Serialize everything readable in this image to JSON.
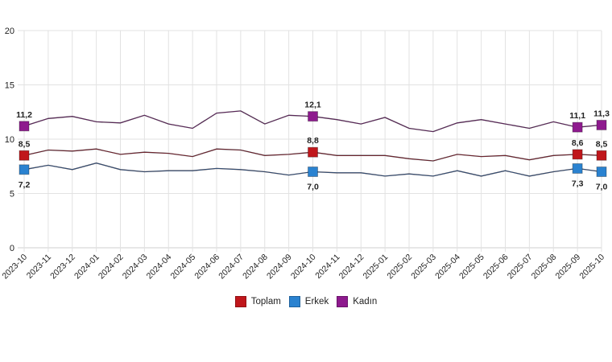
{
  "chart_data": {
    "type": "line",
    "title": "",
    "xlabel": "",
    "ylabel": "",
    "ylim": [
      0,
      20
    ],
    "yticks": [
      0,
      5,
      10,
      15,
      20
    ],
    "grid": true,
    "legend_position": "bottom",
    "x": [
      "2023-10",
      "2023-11",
      "2023-12",
      "2024-01",
      "2024-02",
      "2024-03",
      "2024-04",
      "2024-05",
      "2024-06",
      "2024-07",
      "2024-08",
      "2024-09",
      "2024-10",
      "2024-11",
      "2024-12",
      "2025-01",
      "2025-02",
      "2025-03",
      "2025-04",
      "2025-05",
      "2025-06",
      "2025-07",
      "2025-08",
      "2025-09",
      "2025-10"
    ],
    "series": [
      {
        "name": "Toplam",
        "color": "#c0161b",
        "values": [
          8.5,
          9.0,
          8.9,
          9.1,
          8.6,
          8.8,
          8.7,
          8.4,
          9.1,
          9.0,
          8.5,
          8.6,
          8.8,
          8.5,
          8.5,
          8.5,
          8.2,
          8.0,
          8.6,
          8.4,
          8.5,
          8.1,
          8.5,
          8.6,
          8.5
        ]
      },
      {
        "name": "Erkek",
        "color": "#2a82d0",
        "values": [
          7.2,
          7.6,
          7.2,
          7.8,
          7.2,
          7.0,
          7.1,
          7.1,
          7.3,
          7.2,
          7.0,
          6.7,
          7.0,
          6.9,
          6.9,
          6.6,
          6.8,
          6.6,
          7.1,
          6.6,
          7.1,
          6.6,
          7.0,
          7.3,
          7.0
        ]
      },
      {
        "name": "Kadın",
        "color": "#8e1a8e",
        "values": [
          11.2,
          11.9,
          12.1,
          11.6,
          11.5,
          12.2,
          11.4,
          11.0,
          12.4,
          12.6,
          11.4,
          12.2,
          12.1,
          11.8,
          11.4,
          12.0,
          11.0,
          10.7,
          11.5,
          11.8,
          11.4,
          11.0,
          11.6,
          11.1,
          11.3
        ]
      }
    ],
    "annotations": [
      {
        "series": "Kadın",
        "x": "2023-10",
        "label": "11,2",
        "position": "above"
      },
      {
        "series": "Toplam",
        "x": "2023-10",
        "label": "8,5",
        "position": "above"
      },
      {
        "series": "Erkek",
        "x": "2023-10",
        "label": "7,2",
        "position": "below"
      },
      {
        "series": "Kadın",
        "x": "2024-10",
        "label": "12,1",
        "position": "above"
      },
      {
        "series": "Toplam",
        "x": "2024-10",
        "label": "8,8",
        "position": "above"
      },
      {
        "series": "Erkek",
        "x": "2024-10",
        "label": "7,0",
        "position": "below"
      },
      {
        "series": "Kadın",
        "x": "2025-09",
        "label": "11,1",
        "position": "above"
      },
      {
        "series": "Toplam",
        "x": "2025-09",
        "label": "8,6",
        "position": "above"
      },
      {
        "series": "Erkek",
        "x": "2025-09",
        "label": "7,3",
        "position": "below"
      },
      {
        "series": "Kadın",
        "x": "2025-10",
        "label": "11,3",
        "position": "above"
      },
      {
        "series": "Toplam",
        "x": "2025-10",
        "label": "8,5",
        "position": "above"
      },
      {
        "series": "Erkek",
        "x": "2025-10",
        "label": "7,0",
        "position": "below"
      }
    ],
    "marked_points": [
      "2023-10",
      "2024-10",
      "2025-09",
      "2025-10"
    ]
  },
  "legend": {
    "items": [
      {
        "label": "Toplam",
        "color": "#c0161b"
      },
      {
        "label": "Erkek",
        "color": "#2a82d0"
      },
      {
        "label": "Kadın",
        "color": "#8e1a8e"
      }
    ]
  }
}
